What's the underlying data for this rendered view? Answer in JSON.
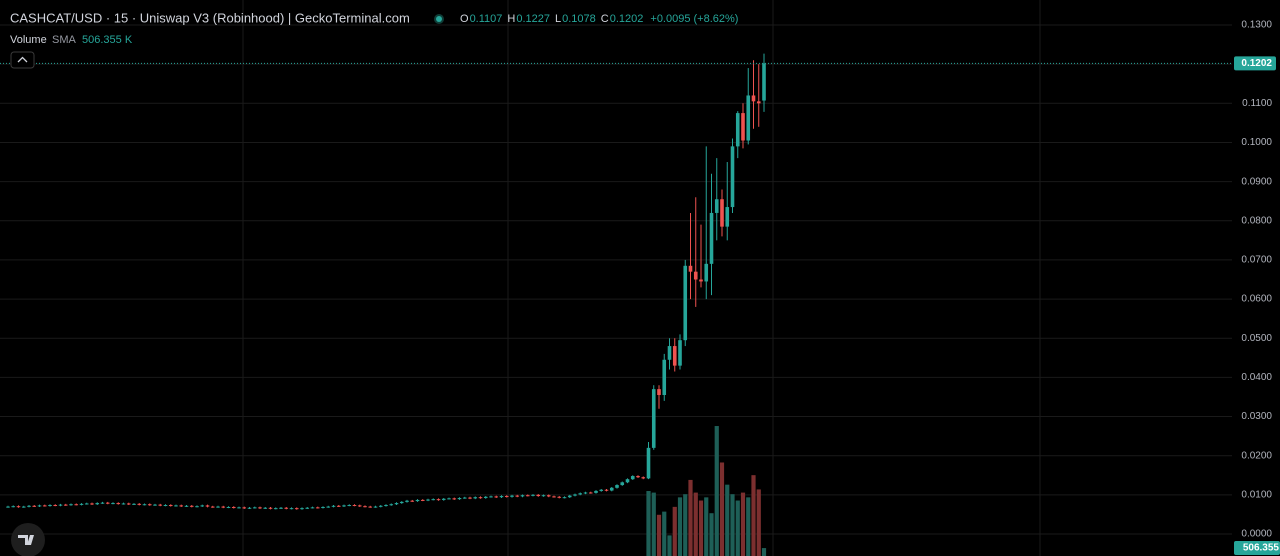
{
  "chart_data": {
    "type": "candlestick",
    "title": "CASHCAT/USD · 15 · Uniswap V3 (Robinhood) | GeckoTerminal.com",
    "ohlc_legend": [
      {
        "key": "O",
        "value": "0.1107"
      },
      {
        "key": "H",
        "value": "0.1227"
      },
      {
        "key": "L",
        "value": "0.1078"
      },
      {
        "key": "C",
        "value": "0.1202"
      }
    ],
    "change": "+0.0095 (+8.62%)",
    "volume_legend": {
      "name": "Volume",
      "indicator": "SMA",
      "value": "506.355 K"
    },
    "up_color": "#26a69a",
    "down_color": "#ef5350",
    "volume_up_color": "#1e5f57",
    "volume_down_color": "#7c2f2f",
    "ylim": [
      0,
      0.13
    ],
    "yticks": [
      {
        "value": 0,
        "label": "0.0000"
      },
      {
        "value": 0.01,
        "label": "0.0100"
      },
      {
        "value": 0.02,
        "label": "0.0200"
      },
      {
        "value": 0.03,
        "label": "0.0300"
      },
      {
        "value": 0.04,
        "label": "0.0400"
      },
      {
        "value": 0.05,
        "label": "0.0500"
      },
      {
        "value": 0.06,
        "label": "0.0600"
      },
      {
        "value": 0.07,
        "label": "0.0700"
      },
      {
        "value": 0.08,
        "label": "0.0800"
      },
      {
        "value": 0.09,
        "label": "0.0900"
      },
      {
        "value": 0.1,
        "label": "0.1000"
      },
      {
        "value": 0.11,
        "label": "0.1100"
      },
      {
        "value": 0.12,
        "label": "0.1200"
      },
      {
        "value": 0.13,
        "label": "0.1300"
      }
    ],
    "price_tag": {
      "value": 0.1202,
      "label": "0.1202"
    },
    "volume_tag": {
      "value": 506.355,
      "label": "506.355"
    },
    "volume_ylim": [
      0,
      33500
    ],
    "grid": true,
    "candles": [
      [
        0.0069,
        0.0072,
        0.0067,
        0.007
      ],
      [
        0.007,
        0.0073,
        0.0068,
        0.0071
      ],
      [
        0.0071,
        0.0073,
        0.0067,
        0.0069
      ],
      [
        0.0069,
        0.0072,
        0.0067,
        0.007
      ],
      [
        0.007,
        0.0074,
        0.0068,
        0.0072
      ],
      [
        0.0072,
        0.0074,
        0.0069,
        0.0071
      ],
      [
        0.0071,
        0.0075,
        0.0069,
        0.0073
      ],
      [
        0.0073,
        0.0075,
        0.007,
        0.0072
      ],
      [
        0.0072,
        0.0076,
        0.007,
        0.0074
      ],
      [
        0.0074,
        0.0076,
        0.0071,
        0.0073
      ],
      [
        0.0073,
        0.0077,
        0.0071,
        0.0075
      ],
      [
        0.0075,
        0.0077,
        0.0072,
        0.0074
      ],
      [
        0.0074,
        0.0078,
        0.0072,
        0.0076
      ],
      [
        0.0076,
        0.0078,
        0.0073,
        0.0075
      ],
      [
        0.0075,
        0.0079,
        0.0073,
        0.0077
      ],
      [
        0.0077,
        0.008,
        0.0075,
        0.0078
      ],
      [
        0.0078,
        0.008,
        0.0074,
        0.0076
      ],
      [
        0.0076,
        0.0081,
        0.0074,
        0.0079
      ],
      [
        0.0079,
        0.0082,
        0.0077,
        0.008
      ],
      [
        0.008,
        0.0082,
        0.0076,
        0.0078
      ],
      [
        0.0078,
        0.0081,
        0.0076,
        0.0079
      ],
      [
        0.0079,
        0.0081,
        0.0075,
        0.0077
      ],
      [
        0.0077,
        0.008,
        0.0075,
        0.0078
      ],
      [
        0.0078,
        0.008,
        0.0074,
        0.0076
      ],
      [
        0.0076,
        0.0079,
        0.0074,
        0.0077
      ],
      [
        0.0077,
        0.0079,
        0.0073,
        0.0075
      ],
      [
        0.0075,
        0.0078,
        0.0073,
        0.0076
      ],
      [
        0.0076,
        0.0078,
        0.0072,
        0.0074
      ],
      [
        0.0074,
        0.0077,
        0.0072,
        0.0075
      ],
      [
        0.0075,
        0.0077,
        0.0071,
        0.0073
      ],
      [
        0.0073,
        0.0076,
        0.0071,
        0.0074
      ],
      [
        0.0074,
        0.0076,
        0.007,
        0.0072
      ],
      [
        0.0072,
        0.0075,
        0.007,
        0.0073
      ],
      [
        0.0073,
        0.0075,
        0.0069,
        0.0071
      ],
      [
        0.0071,
        0.0074,
        0.0069,
        0.0072
      ],
      [
        0.0072,
        0.0074,
        0.0068,
        0.007
      ],
      [
        0.007,
        0.0073,
        0.0068,
        0.0071
      ],
      [
        0.0071,
        0.0075,
        0.0069,
        0.0073
      ],
      [
        0.0073,
        0.0075,
        0.0068,
        0.007
      ],
      [
        0.007,
        0.0072,
        0.0067,
        0.0069
      ],
      [
        0.0069,
        0.0072,
        0.0067,
        0.007
      ],
      [
        0.007,
        0.0072,
        0.0066,
        0.0068
      ],
      [
        0.0068,
        0.0071,
        0.0066,
        0.0069
      ],
      [
        0.0069,
        0.0071,
        0.0065,
        0.0067
      ],
      [
        0.0067,
        0.007,
        0.0065,
        0.0068
      ],
      [
        0.0068,
        0.007,
        0.0064,
        0.0066
      ],
      [
        0.0066,
        0.0069,
        0.0064,
        0.0067
      ],
      [
        0.0067,
        0.007,
        0.0065,
        0.0068
      ],
      [
        0.0068,
        0.007,
        0.0064,
        0.0066
      ],
      [
        0.0066,
        0.0069,
        0.0064,
        0.0067
      ],
      [
        0.0067,
        0.0069,
        0.0063,
        0.0065
      ],
      [
        0.0065,
        0.0068,
        0.0063,
        0.0066
      ],
      [
        0.0066,
        0.0069,
        0.0064,
        0.0067
      ],
      [
        0.0067,
        0.0069,
        0.0063,
        0.0065
      ],
      [
        0.0065,
        0.0068,
        0.0063,
        0.0066
      ],
      [
        0.0066,
        0.0068,
        0.0062,
        0.0064
      ],
      [
        0.0064,
        0.0068,
        0.0062,
        0.0066
      ],
      [
        0.0066,
        0.0069,
        0.0064,
        0.0067
      ],
      [
        0.0067,
        0.007,
        0.0065,
        0.0068
      ],
      [
        0.0068,
        0.007,
        0.0065,
        0.0067
      ],
      [
        0.0067,
        0.0071,
        0.0065,
        0.0069
      ],
      [
        0.0069,
        0.0072,
        0.0067,
        0.007
      ],
      [
        0.007,
        0.0074,
        0.0068,
        0.0072
      ],
      [
        0.0072,
        0.0074,
        0.0069,
        0.0071
      ],
      [
        0.0071,
        0.0075,
        0.0069,
        0.0073
      ],
      [
        0.0073,
        0.0076,
        0.0071,
        0.0074
      ],
      [
        0.0074,
        0.0076,
        0.0071,
        0.0073
      ],
      [
        0.0073,
        0.0075,
        0.0069,
        0.0071
      ],
      [
        0.0071,
        0.0073,
        0.0068,
        0.007
      ],
      [
        0.007,
        0.0072,
        0.0067,
        0.0069
      ],
      [
        0.0069,
        0.0072,
        0.0067,
        0.007
      ],
      [
        0.007,
        0.0074,
        0.0068,
        0.0072
      ],
      [
        0.0072,
        0.0076,
        0.007,
        0.0074
      ],
      [
        0.0074,
        0.0078,
        0.0072,
        0.0076
      ],
      [
        0.0076,
        0.0081,
        0.0074,
        0.0079
      ],
      [
        0.0079,
        0.0084,
        0.0077,
        0.0082
      ],
      [
        0.0082,
        0.0087,
        0.008,
        0.0085
      ],
      [
        0.0085,
        0.0087,
        0.0082,
        0.0084
      ],
      [
        0.0084,
        0.0089,
        0.0082,
        0.0087
      ],
      [
        0.0087,
        0.0089,
        0.0084,
        0.0086
      ],
      [
        0.0086,
        0.009,
        0.0084,
        0.0088
      ],
      [
        0.0088,
        0.0091,
        0.0086,
        0.0089
      ],
      [
        0.0089,
        0.0091,
        0.0085,
        0.0087
      ],
      [
        0.0087,
        0.0092,
        0.0085,
        0.009
      ],
      [
        0.009,
        0.0093,
        0.0088,
        0.0091
      ],
      [
        0.0091,
        0.0093,
        0.0087,
        0.0089
      ],
      [
        0.0089,
        0.0094,
        0.0087,
        0.0092
      ],
      [
        0.0092,
        0.0095,
        0.009,
        0.0093
      ],
      [
        0.0093,
        0.0095,
        0.0089,
        0.0091
      ],
      [
        0.0091,
        0.0096,
        0.0089,
        0.0094
      ],
      [
        0.0094,
        0.0096,
        0.009,
        0.0092
      ],
      [
        0.0092,
        0.0097,
        0.009,
        0.0095
      ],
      [
        0.0095,
        0.0098,
        0.0093,
        0.0096
      ],
      [
        0.0096,
        0.0098,
        0.0092,
        0.0094
      ],
      [
        0.0094,
        0.0099,
        0.0092,
        0.0097
      ],
      [
        0.0097,
        0.0099,
        0.0093,
        0.0095
      ],
      [
        0.0095,
        0.01,
        0.0093,
        0.0098
      ],
      [
        0.0098,
        0.01,
        0.0094,
        0.0096
      ],
      [
        0.0096,
        0.0101,
        0.0094,
        0.0099
      ],
      [
        0.0099,
        0.0101,
        0.0096,
        0.0098
      ],
      [
        0.0098,
        0.0102,
        0.0096,
        0.01
      ],
      [
        0.01,
        0.0102,
        0.0095,
        0.0097
      ],
      [
        0.0097,
        0.0101,
        0.0095,
        0.0099
      ],
      [
        0.0099,
        0.0101,
        0.0094,
        0.0096
      ],
      [
        0.0096,
        0.0098,
        0.0093,
        0.0095
      ],
      [
        0.0095,
        0.0097,
        0.0091,
        0.0093
      ],
      [
        0.0093,
        0.0096,
        0.0091,
        0.0094
      ],
      [
        0.0094,
        0.01,
        0.0092,
        0.0098
      ],
      [
        0.0098,
        0.0103,
        0.0096,
        0.0101
      ],
      [
        0.0101,
        0.0106,
        0.0099,
        0.0104
      ],
      [
        0.0104,
        0.0108,
        0.0102,
        0.0106
      ],
      [
        0.0106,
        0.0108,
        0.0103,
        0.0105
      ],
      [
        0.0105,
        0.0112,
        0.0103,
        0.011
      ],
      [
        0.011,
        0.0115,
        0.0108,
        0.0113
      ],
      [
        0.0113,
        0.0115,
        0.0109,
        0.0111
      ],
      [
        0.0111,
        0.012,
        0.0109,
        0.0118
      ],
      [
        0.0118,
        0.0127,
        0.0116,
        0.0125
      ],
      [
        0.0125,
        0.0134,
        0.0123,
        0.0132
      ],
      [
        0.0132,
        0.0142,
        0.013,
        0.014
      ],
      [
        0.014,
        0.015,
        0.0138,
        0.0148
      ],
      [
        0.0148,
        0.015,
        0.0143,
        0.0145
      ],
      [
        0.0145,
        0.0147,
        0.014,
        0.0142
      ],
      [
        0.0142,
        0.0235,
        0.014,
        0.022
      ],
      [
        0.022,
        0.038,
        0.0215,
        0.037
      ],
      [
        0.037,
        0.038,
        0.032,
        0.0355
      ],
      [
        0.0355,
        0.046,
        0.034,
        0.0445
      ],
      [
        0.0445,
        0.05,
        0.042,
        0.048
      ],
      [
        0.048,
        0.05,
        0.0415,
        0.043
      ],
      [
        0.043,
        0.051,
        0.042,
        0.0495
      ],
      [
        0.0495,
        0.07,
        0.048,
        0.0685
      ],
      [
        0.0685,
        0.082,
        0.06,
        0.067
      ],
      [
        0.067,
        0.086,
        0.058,
        0.065
      ],
      [
        0.065,
        0.079,
        0.063,
        0.0645
      ],
      [
        0.0645,
        0.099,
        0.06,
        0.069
      ],
      [
        0.069,
        0.092,
        0.061,
        0.082
      ],
      [
        0.082,
        0.096,
        0.075,
        0.0855
      ],
      [
        0.0855,
        0.088,
        0.076,
        0.0785
      ],
      [
        0.0785,
        0.095,
        0.075,
        0.0835
      ],
      [
        0.0835,
        0.101,
        0.082,
        0.099
      ],
      [
        0.099,
        0.108,
        0.096,
        0.1075
      ],
      [
        0.1075,
        0.11,
        0.0985,
        0.1005
      ],
      [
        0.1005,
        0.119,
        0.0995,
        0.112
      ],
      [
        0.112,
        0.121,
        0.1035,
        0.1105
      ],
      [
        0.1105,
        0.12,
        0.104,
        0.11
      ],
      [
        0.1107,
        0.1227,
        0.1078,
        0.1202
      ]
    ],
    "volume": [
      null,
      null,
      null,
      null,
      null,
      null,
      null,
      null,
      null,
      null,
      null,
      null,
      null,
      null,
      null,
      null,
      null,
      null,
      null,
      null,
      null,
      null,
      null,
      null,
      null,
      null,
      null,
      null,
      null,
      null,
      null,
      null,
      null,
      null,
      null,
      null,
      null,
      null,
      null,
      null,
      null,
      null,
      null,
      null,
      null,
      null,
      null,
      null,
      null,
      null,
      null,
      null,
      null,
      null,
      null,
      null,
      null,
      null,
      null,
      null,
      null,
      null,
      null,
      null,
      null,
      null,
      null,
      null,
      null,
      null,
      null,
      null,
      null,
      null,
      null,
      null,
      null,
      null,
      null,
      null,
      null,
      null,
      null,
      null,
      null,
      null,
      null,
      null,
      null,
      null,
      null,
      null,
      null,
      null,
      null,
      null,
      null,
      null,
      null,
      null,
      null,
      null,
      null,
      null,
      null,
      null,
      null,
      null,
      null,
      null,
      null,
      null,
      null,
      null,
      null,
      null,
      null,
      null,
      null,
      null,
      null,
      null,
      4100,
      4000,
      2600,
      2800,
      1300,
      3100,
      3700,
      3900,
      4800,
      4000,
      3500,
      3700,
      2700,
      8200,
      5900,
      4500,
      3900,
      3500,
      4000,
      3700,
      5100,
      4200,
      500
    ]
  }
}
